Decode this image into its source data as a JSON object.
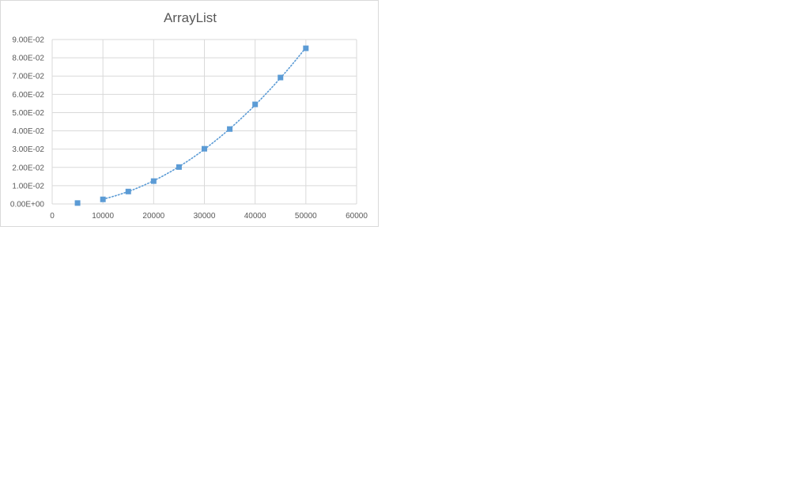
{
  "chart_data": {
    "type": "scatter",
    "title": "ArrayList",
    "xlabel": "",
    "ylabel": "",
    "xlim": [
      0,
      60000
    ],
    "ylim": [
      0,
      0.09
    ],
    "x_ticks": [
      "0",
      "10000",
      "20000",
      "30000",
      "40000",
      "50000",
      "60000"
    ],
    "y_ticks": [
      "0.00E+00",
      "1.00E-02",
      "2.00E-02",
      "3.00E-02",
      "4.00E-02",
      "5.00E-02",
      "6.00E-02",
      "7.00E-02",
      "8.00E-02",
      "9.00E-02"
    ],
    "grid": true,
    "legend": "none",
    "series": [
      {
        "color": "#5b9bd5",
        "marker": "square",
        "x": [
          5000,
          10000,
          15000,
          20000,
          25000,
          30000,
          35000,
          40000,
          45000,
          50000
        ],
        "y": [
          0.0005,
          0.0025,
          0.0068,
          0.0125,
          0.0202,
          0.0302,
          0.041,
          0.0545,
          0.0692,
          0.0852
        ]
      }
    ],
    "trendline": {
      "type": "polynomial",
      "style": "dotted",
      "color": "#5b9bd5",
      "x_range": [
        10000,
        50000
      ]
    }
  }
}
